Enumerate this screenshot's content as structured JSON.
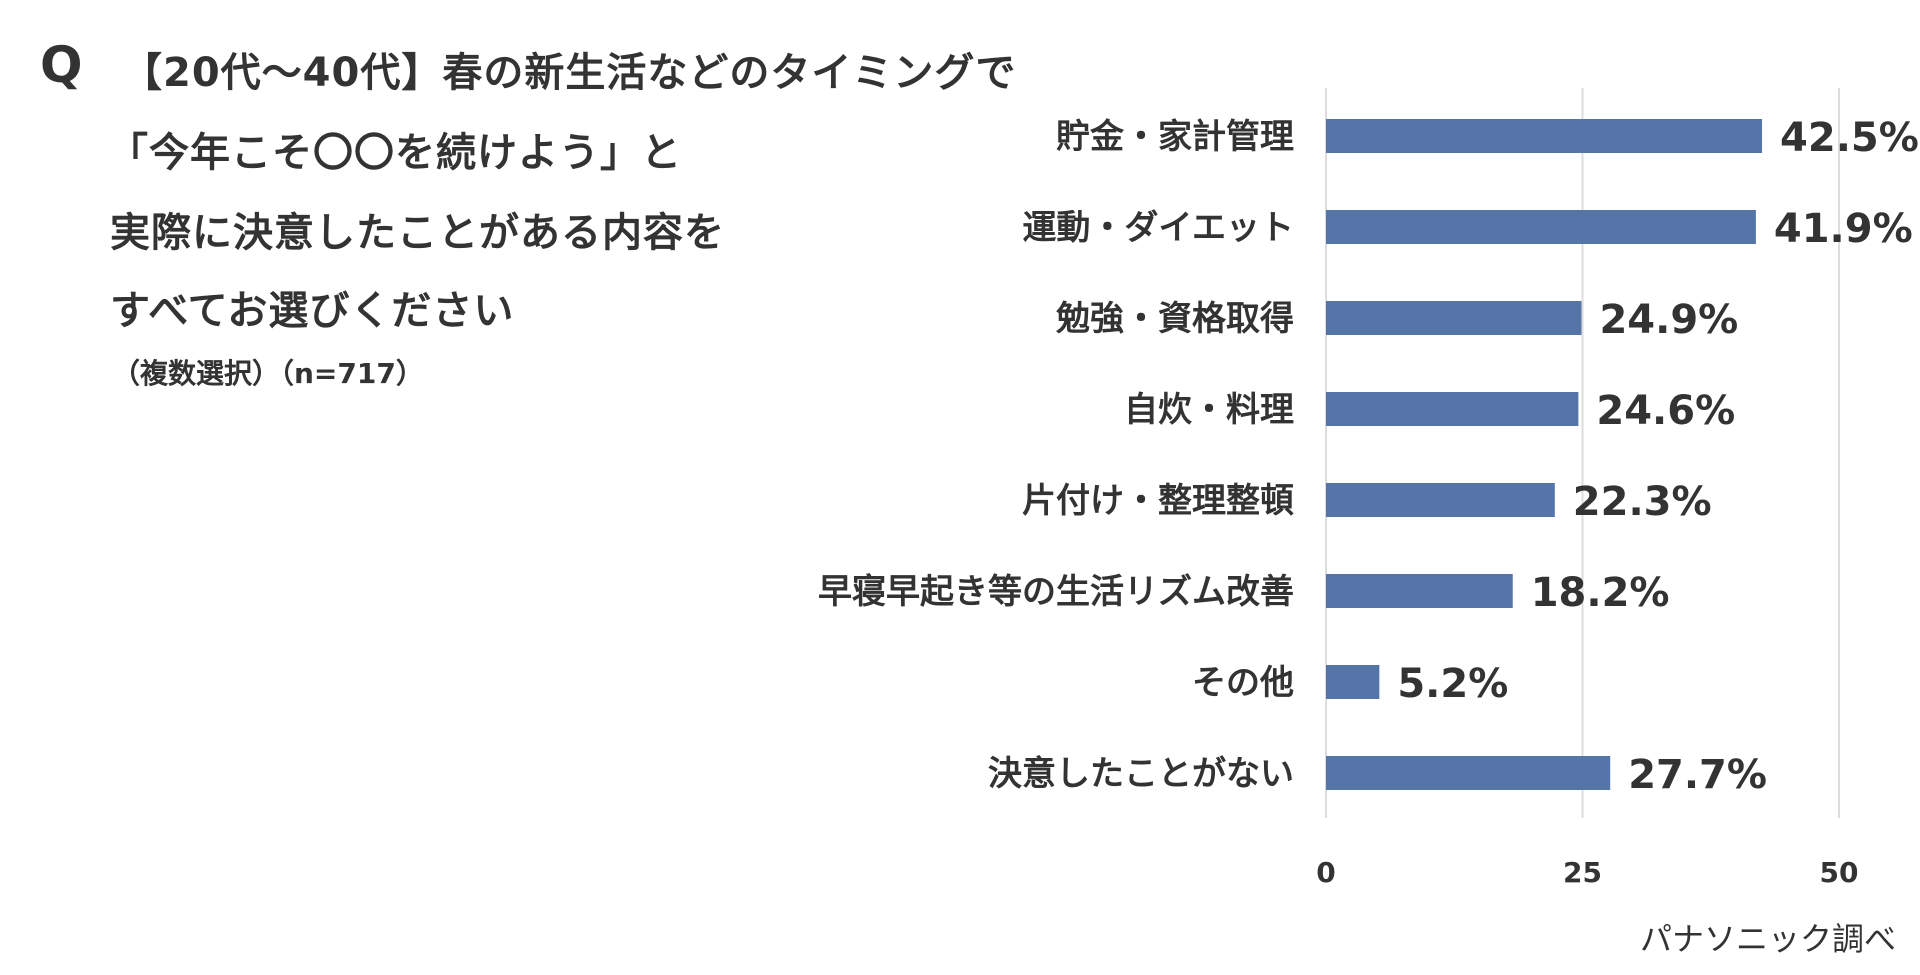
{
  "title": {
    "q_mark": "Q",
    "lines": [
      "【20代～40代】春の新生活などのタイミングで",
      "「今年こそ〇〇を続けよう」と",
      "実際に決意したことがある内容を",
      "すべてお選びください"
    ],
    "note": "（複数選択）（n=717）"
  },
  "source": "パナソニック調べ",
  "chart_data": {
    "type": "bar",
    "orientation": "horizontal",
    "categories": [
      "貯金・家計管理",
      "運動・ダイエット",
      "勉強・資格取得",
      "自炊・料理",
      "片付け・整理整頓",
      "早寝早起き等の生活リズム改善",
      "その他",
      "決意したことがない"
    ],
    "values": [
      42.5,
      41.9,
      24.9,
      24.6,
      22.3,
      18.2,
      5.2,
      27.7
    ],
    "value_labels": [
      "42.5%",
      "41.9%",
      "24.9%",
      "24.6%",
      "22.3%",
      "18.2%",
      "5.2%",
      "27.7%"
    ],
    "xlim": [
      0,
      50
    ],
    "xticks": [
      "0",
      "25",
      "50"
    ],
    "xtick_values": [
      0,
      25,
      50
    ],
    "grid": true,
    "bar_color": "#5574a8",
    "grid_color": "#dddddd"
  }
}
